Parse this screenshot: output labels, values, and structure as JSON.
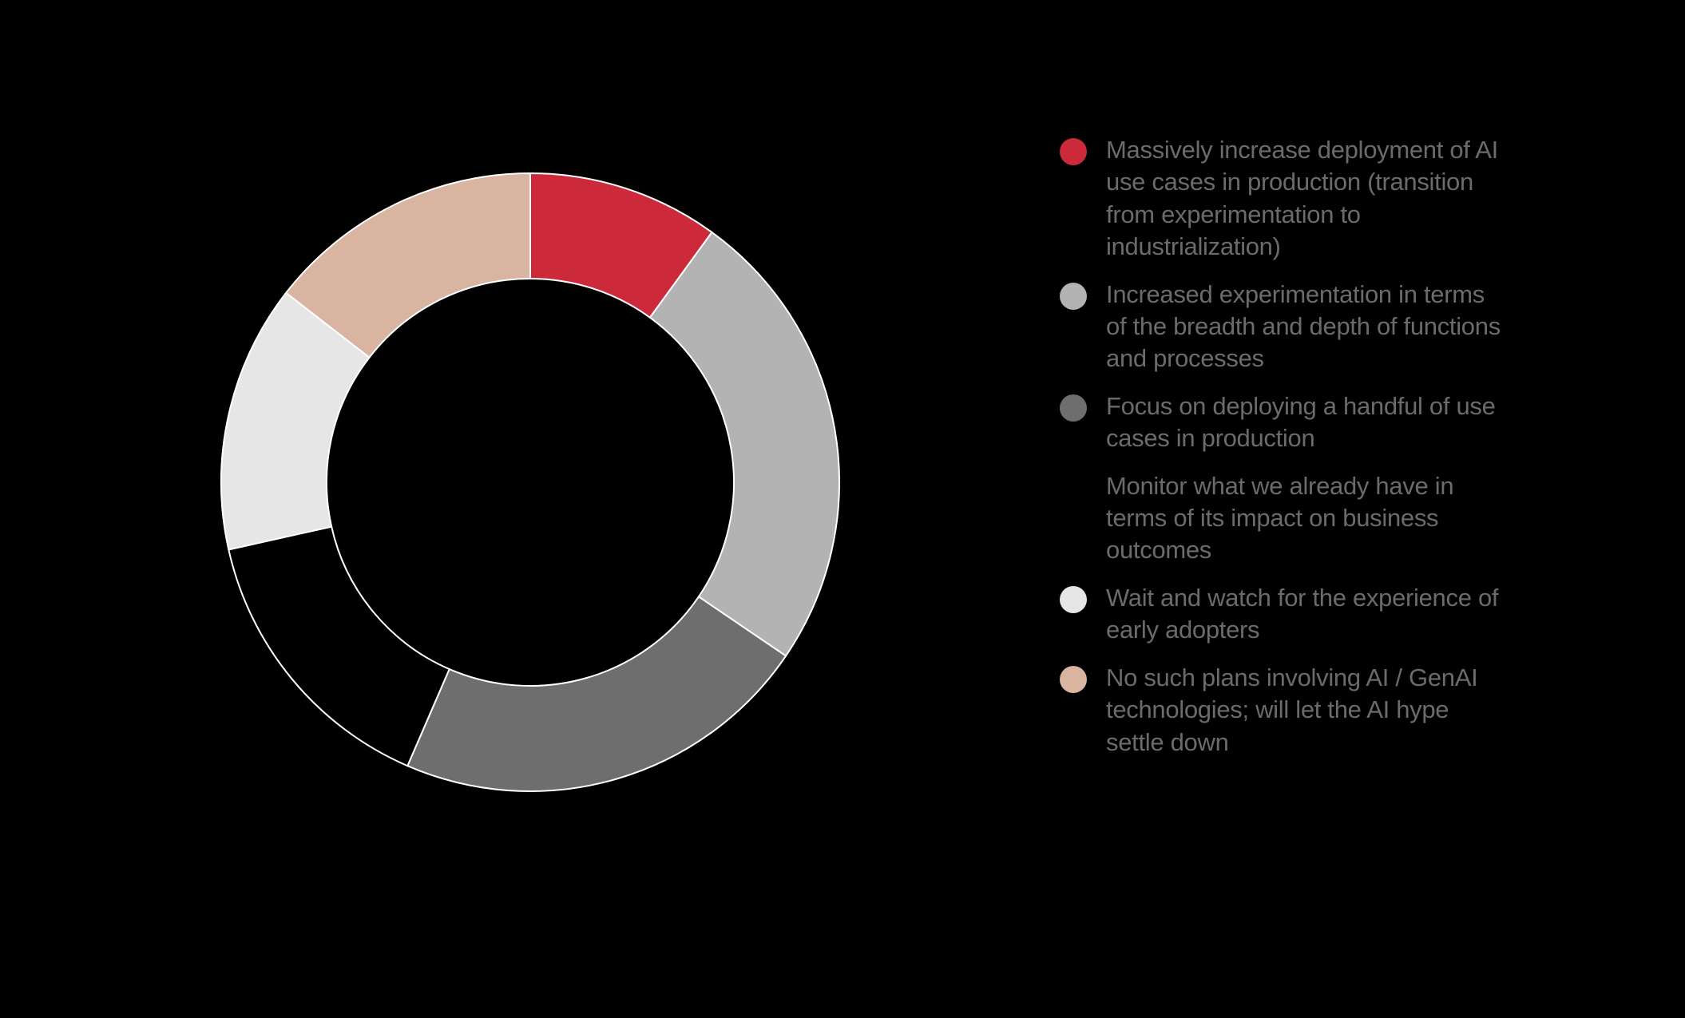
{
  "chart_data": {
    "type": "pie",
    "style": "donut",
    "title": "",
    "legend_position": "right",
    "series": [
      {
        "name": "",
        "values": [
          {
            "label": "Massively increase deployment of AI use cases in production (transition from experimentation to industrialization)",
            "value": 10.0,
            "color": "#cc2a3a"
          },
          {
            "label": "Increased experimentation in terms of the breadth and depth of functions and processes",
            "value": 24.5,
            "color": "#b3b3b3"
          },
          {
            "label": "Focus on deploying a handful of use cases in production",
            "value": 22.0,
            "color": "#6e6e6e"
          },
          {
            "label": "Monitor what we already have in terms of its impact on business outcomes",
            "value": 15.0,
            "color": "#000000"
          },
          {
            "label": "Wait and watch for the experience of early adopters",
            "value": 14.0,
            "color": "#e6e6e6"
          },
          {
            "label": "No such plans involving AI / GenAI technologies; will let the AI hype settle down",
            "value": 14.5,
            "color": "#d9b4a0"
          }
        ]
      }
    ]
  }
}
